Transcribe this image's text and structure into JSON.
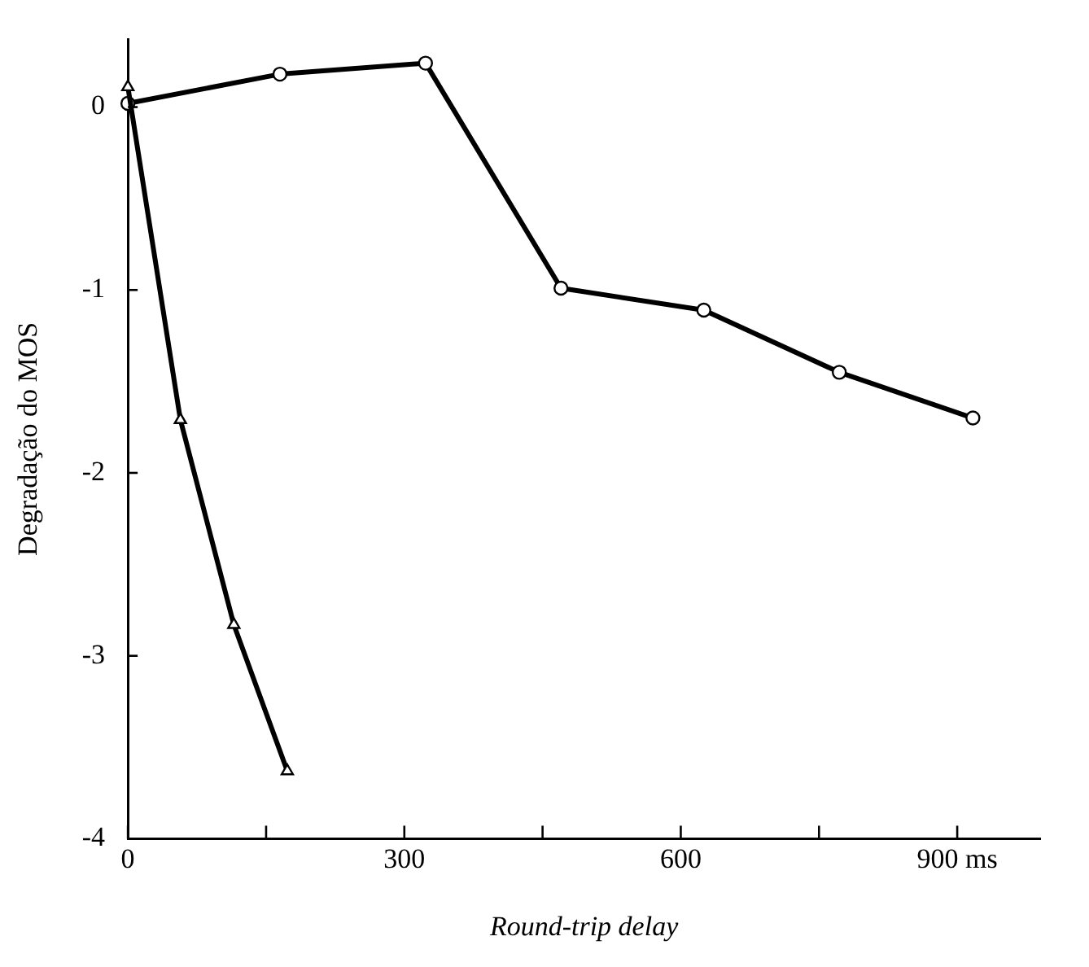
{
  "chart_data": {
    "type": "line",
    "xlabel": "Round-trip delay",
    "ylabel": "Degradação do MOS",
    "xlim": [
      0,
      990
    ],
    "ylim": [
      -4,
      0.37
    ],
    "xticks": [
      0,
      {
        "value": 150,
        "label": null
      },
      300,
      {
        "value": 450,
        "label": null
      },
      600,
      {
        "value": 750,
        "label": null
      },
      {
        "value": 900,
        "label": "900 ms"
      }
    ],
    "yticks": [
      -4,
      -3,
      -2,
      -1,
      0
    ],
    "grid": false,
    "legend": false,
    "line_style": "solid",
    "series": [
      {
        "color": "#000000",
        "marker": "circle",
        "x": [
          0,
          165,
          323,
          470,
          625,
          772,
          917
        ],
        "values": [
          0.02,
          0.18,
          0.24,
          -0.99,
          -1.11,
          -1.45,
          -1.7
        ]
      },
      {
        "color": "#000000",
        "marker": "triangle",
        "x": [
          0,
          57,
          115,
          173
        ],
        "values": [
          0.11,
          -1.71,
          -2.83,
          -3.63
        ]
      }
    ]
  }
}
